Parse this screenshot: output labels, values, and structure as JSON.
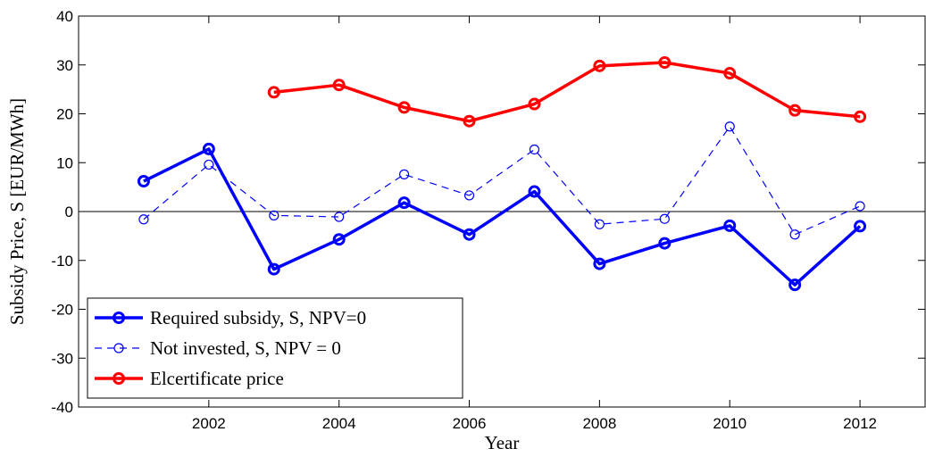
{
  "chart_data": {
    "type": "line",
    "xlabel": "Year",
    "ylabel": "Subsidy Price, S [EUR/MWh]",
    "x": [
      2001,
      2002,
      2003,
      2004,
      2005,
      2006,
      2007,
      2008,
      2009,
      2010,
      2011,
      2012
    ],
    "series": [
      {
        "name": "Required subsidy, S, NPV=0",
        "color": "#0000ff",
        "style": "solid",
        "values": [
          6.2,
          12.8,
          -11.8,
          -5.7,
          1.8,
          -4.7,
          4.1,
          -10.7,
          -6.5,
          -2.9,
          -15.0,
          -3.0
        ]
      },
      {
        "name": "Not invested, S, NPV = 0",
        "color": "#0000ff",
        "style": "dashed",
        "values": [
          -1.6,
          9.6,
          -0.8,
          -1.1,
          7.6,
          3.3,
          12.7,
          -2.6,
          -1.5,
          17.4,
          -4.7,
          1.1
        ]
      },
      {
        "name": "Elcertificate price",
        "color": "#ff0000",
        "style": "solid",
        "values": [
          null,
          null,
          24.4,
          25.9,
          21.3,
          18.5,
          22.0,
          29.8,
          30.5,
          28.3,
          20.7,
          19.4
        ]
      }
    ],
    "xlim": [
      2000,
      2013
    ],
    "xticks": [
      2002,
      2004,
      2006,
      2008,
      2010,
      2012
    ],
    "ylim": [
      -40,
      40
    ],
    "yticks": [
      -40,
      -30,
      -20,
      -10,
      0,
      10,
      20,
      30,
      40
    ],
    "grid": false,
    "legend": "lower left"
  }
}
